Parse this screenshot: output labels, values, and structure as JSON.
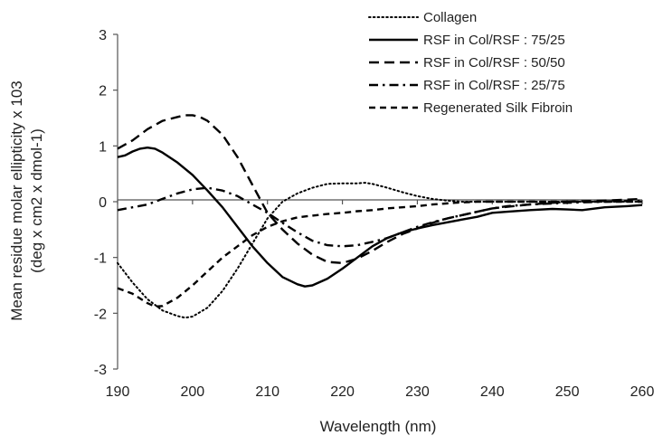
{
  "chart_data": {
    "type": "line",
    "title": "",
    "xlabel": "Wavelength (nm)",
    "ylabel_line1": "Mean residue molar ellipticity x 103",
    "ylabel_line2": "(deg x cm2 x dmol-1)",
    "xlim": [
      190,
      260
    ],
    "ylim": [
      -3,
      3
    ],
    "xticks": [
      "190",
      "200",
      "210",
      "220",
      "230",
      "240",
      "250",
      "260"
    ],
    "yticks": [
      "3",
      "2",
      "1",
      "0",
      "-1",
      "-2",
      "-3"
    ],
    "grid": false,
    "legend_position": "top-right",
    "series": [
      {
        "name": "Collagen",
        "style": "dotted",
        "color": "#000000",
        "x": [
          190,
          192,
          194,
          196,
          198,
          199,
          200,
          202,
          204,
          206,
          208,
          210,
          212,
          214,
          216,
          218,
          220,
          222,
          223,
          224,
          226,
          228,
          230,
          232,
          234,
          236,
          238,
          240,
          245,
          250,
          255,
          260
        ],
        "y": [
          -1.1,
          -1.45,
          -1.75,
          -1.95,
          -2.05,
          -2.08,
          -2.06,
          -1.9,
          -1.6,
          -1.2,
          -0.75,
          -0.3,
          0.0,
          0.15,
          0.25,
          0.32,
          0.33,
          0.33,
          0.34,
          0.32,
          0.25,
          0.17,
          0.1,
          0.05,
          0.02,
          0.0,
          0.0,
          0.0,
          0.0,
          0.0,
          0.0,
          0.0
        ]
      },
      {
        "name": "RSF in Col/RSF : 75/25",
        "style": "solid",
        "color": "#000000",
        "x": [
          190,
          191,
          192,
          193,
          194,
          195,
          196,
          198,
          200,
          202,
          204,
          206,
          208,
          210,
          212,
          214,
          215,
          216,
          218,
          220,
          222,
          224,
          226,
          228,
          230,
          232,
          234,
          236,
          238,
          240,
          242,
          245,
          248,
          250,
          252,
          255,
          258,
          260
        ],
        "y": [
          0.8,
          0.83,
          0.9,
          0.95,
          0.97,
          0.95,
          0.88,
          0.7,
          0.48,
          0.2,
          -0.1,
          -0.45,
          -0.8,
          -1.1,
          -1.35,
          -1.48,
          -1.52,
          -1.5,
          -1.38,
          -1.2,
          -1.0,
          -0.8,
          -0.65,
          -0.55,
          -0.48,
          -0.42,
          -0.37,
          -0.32,
          -0.27,
          -0.2,
          -0.18,
          -0.15,
          -0.13,
          -0.14,
          -0.15,
          -0.1,
          -0.08,
          -0.06
        ]
      },
      {
        "name": "RSF in Col/RSF : 50/50",
        "style": "dashed",
        "color": "#000000",
        "x": [
          190,
          192,
          194,
          196,
          198,
          199,
          200,
          201,
          202,
          204,
          206,
          208,
          210,
          212,
          214,
          216,
          218,
          220,
          222,
          224,
          226,
          228,
          230,
          232,
          234,
          236,
          238,
          240,
          245,
          250,
          255,
          260
        ],
        "y": [
          0.95,
          1.1,
          1.3,
          1.45,
          1.52,
          1.55,
          1.55,
          1.52,
          1.45,
          1.2,
          0.8,
          0.3,
          -0.2,
          -0.5,
          -0.75,
          -0.95,
          -1.08,
          -1.1,
          -1.02,
          -0.88,
          -0.72,
          -0.58,
          -0.48,
          -0.38,
          -0.3,
          -0.24,
          -0.18,
          -0.12,
          -0.05,
          0.0,
          0.02,
          0.05
        ]
      },
      {
        "name": "RSF in Col/RSF : 25/75",
        "style": "dashdot",
        "color": "#000000",
        "x": [
          190,
          192,
          194,
          196,
          198,
          200,
          202,
          204,
          206,
          208,
          210,
          212,
          214,
          216,
          218,
          220,
          222,
          224,
          226,
          228,
          230,
          232,
          234,
          236,
          238,
          240,
          242,
          245,
          250,
          255,
          260
        ],
        "y": [
          -0.15,
          -0.1,
          -0.05,
          0.05,
          0.15,
          0.22,
          0.25,
          0.2,
          0.1,
          -0.05,
          -0.2,
          -0.38,
          -0.55,
          -0.7,
          -0.78,
          -0.8,
          -0.78,
          -0.72,
          -0.65,
          -0.55,
          -0.45,
          -0.37,
          -0.3,
          -0.24,
          -0.18,
          -0.12,
          -0.08,
          -0.05,
          -0.02,
          0.0,
          0.02
        ]
      },
      {
        "name": "Regenerated Silk Fibroin",
        "style": "dashed-short",
        "color": "#000000",
        "x": [
          190,
          192,
          194,
          195,
          196,
          198,
          200,
          202,
          204,
          206,
          208,
          210,
          212,
          214,
          216,
          218,
          220,
          222,
          224,
          226,
          228,
          230,
          232,
          235,
          238,
          240,
          245,
          250,
          255,
          260
        ],
        "y": [
          -1.55,
          -1.65,
          -1.82,
          -1.88,
          -1.87,
          -1.72,
          -1.5,
          -1.25,
          -1.0,
          -0.8,
          -0.6,
          -0.45,
          -0.35,
          -0.28,
          -0.25,
          -0.22,
          -0.2,
          -0.17,
          -0.15,
          -0.12,
          -0.1,
          -0.08,
          -0.05,
          -0.02,
          0.0,
          0.0,
          0.0,
          0.0,
          0.0,
          0.0
        ]
      }
    ]
  }
}
